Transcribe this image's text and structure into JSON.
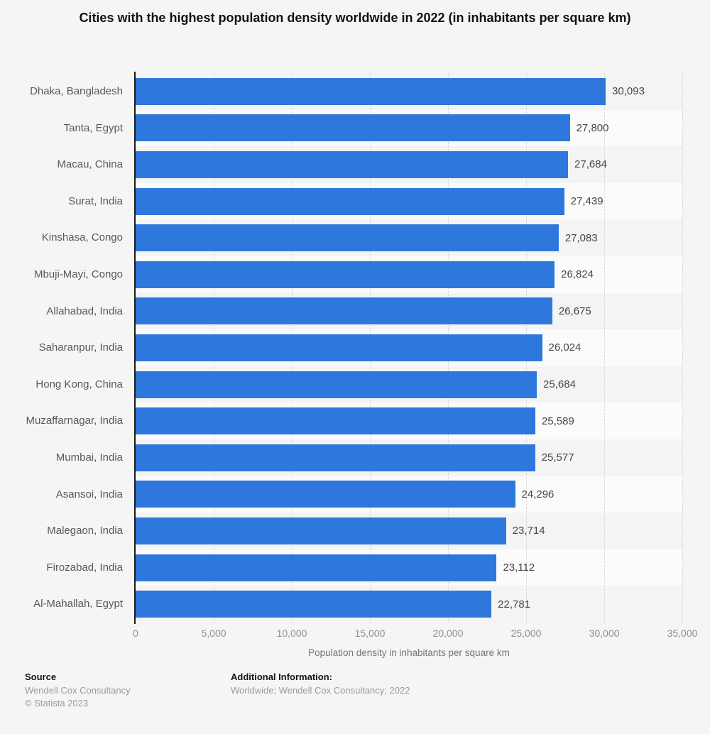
{
  "title": "Cities with the highest population density worldwide in 2022 (in inhabitants per square km)",
  "chart_data": {
    "type": "bar",
    "orientation": "horizontal",
    "title": "Cities with the highest population density worldwide in 2022 (in inhabitants per square km)",
    "categories": [
      "Dhaka, Bangladesh",
      "Tanta, Egypt",
      "Macau, China",
      "Surat, India",
      "Kinshasa, Congo",
      "Mbuji-Mayi, Congo",
      "Allahabad, India",
      "Saharanpur, India",
      "Hong Kong, China",
      "Muzaffarnagar, India",
      "Mumbai, India",
      "Asansoi, India",
      "Malegaon, India",
      "Firozabad, India",
      "Al-Mahallah, Egypt"
    ],
    "values": [
      30093,
      27800,
      27684,
      27439,
      27083,
      26824,
      26675,
      26024,
      25684,
      25589,
      25577,
      24296,
      23714,
      23112,
      22781
    ],
    "value_labels": [
      "30,093",
      "27,800",
      "27,684",
      "27,439",
      "27,083",
      "26,824",
      "26,675",
      "26,024",
      "25,684",
      "25,589",
      "25,577",
      "24,296",
      "23,714",
      "23,112",
      "22,781"
    ],
    "xlabel": "Population density in inhabitants per square km",
    "ylabel": "",
    "xlim": [
      0,
      35000
    ],
    "x_tick_values": [
      0,
      5000,
      10000,
      15000,
      20000,
      25000,
      30000,
      35000
    ],
    "x_tick_labels": [
      "0",
      "5,000",
      "10,000",
      "15,000",
      "20,000",
      "25,000",
      "30,000",
      "35,000"
    ],
    "grid": "vertical-dotted",
    "legend": "none",
    "bar_color": "#2e77dc"
  },
  "colors": {
    "bar": "#2e77dc",
    "background": "#f5f5f5",
    "stripe_even": "#f4f4f4",
    "stripe_odd": "#fbfbfb",
    "axis_line": "#1c1c1c",
    "gridline": "#d2d2d2"
  },
  "footer": {
    "source_label": "Source",
    "source_name": "Wendell Cox Consultancy",
    "copyright": "© Statista 2023",
    "additional_label": "Additional Information:",
    "additional_text": "Worldwide; Wendell Cox  Consultancy; 2022"
  }
}
